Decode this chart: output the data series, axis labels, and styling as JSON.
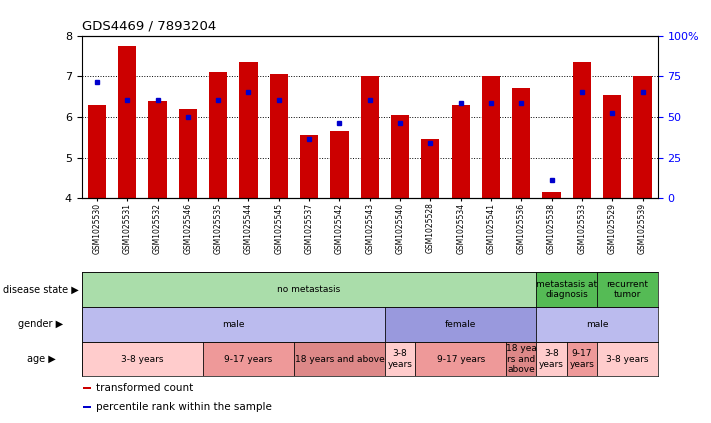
{
  "title": "GDS4469 / 7893204",
  "samples": [
    "GSM1025530",
    "GSM1025531",
    "GSM1025532",
    "GSM1025546",
    "GSM1025535",
    "GSM1025544",
    "GSM1025545",
    "GSM1025537",
    "GSM1025542",
    "GSM1025543",
    "GSM1025540",
    "GSM1025528",
    "GSM1025534",
    "GSM1025541",
    "GSM1025536",
    "GSM1025538",
    "GSM1025533",
    "GSM1025529",
    "GSM1025539"
  ],
  "transformed_counts": [
    6.3,
    7.75,
    6.4,
    6.2,
    7.1,
    7.35,
    7.05,
    5.55,
    5.65,
    7.0,
    6.05,
    5.45,
    6.3,
    7.0,
    6.7,
    4.15,
    7.35,
    6.55,
    7.0
  ],
  "percentile_ranks": [
    6.85,
    6.42,
    6.42,
    6.0,
    6.42,
    6.62,
    6.42,
    5.45,
    5.85,
    6.42,
    5.85,
    5.35,
    6.35,
    6.35,
    6.35,
    4.45,
    6.62,
    6.1,
    6.62
  ],
  "ylim_left": [
    4.0,
    8.0
  ],
  "yticks_left": [
    4,
    5,
    6,
    7,
    8
  ],
  "right_ytick_vals": [
    4.0,
    5.0,
    6.0,
    7.0,
    8.0
  ],
  "right_ytick_labels": [
    "0",
    "25",
    "50",
    "75",
    "100%"
  ],
  "bar_color": "#CC0000",
  "dot_color": "#0000CC",
  "disease_state_groups": [
    {
      "label": "no metastasis",
      "start": 0,
      "end": 15,
      "color": "#AADDAA"
    },
    {
      "label": "metastasis at\ndiagnosis",
      "start": 15,
      "end": 17,
      "color": "#55BB55"
    },
    {
      "label": "recurrent\ntumor",
      "start": 17,
      "end": 19,
      "color": "#55BB55"
    }
  ],
  "gender_groups": [
    {
      "label": "male",
      "start": 0,
      "end": 10,
      "color": "#BBBBEE"
    },
    {
      "label": "female",
      "start": 10,
      "end": 15,
      "color": "#9999DD"
    },
    {
      "label": "male",
      "start": 15,
      "end": 19,
      "color": "#BBBBEE"
    }
  ],
  "age_groups": [
    {
      "label": "3-8 years",
      "start": 0,
      "end": 4,
      "color": "#FFCCCC"
    },
    {
      "label": "9-17 years",
      "start": 4,
      "end": 7,
      "color": "#EE9999"
    },
    {
      "label": "18 years and above",
      "start": 7,
      "end": 10,
      "color": "#DD8888"
    },
    {
      "label": "3-8\nyears",
      "start": 10,
      "end": 11,
      "color": "#FFCCCC"
    },
    {
      "label": "9-17 years",
      "start": 11,
      "end": 14,
      "color": "#EE9999"
    },
    {
      "label": "18 yea\nrs and\nabove",
      "start": 14,
      "end": 15,
      "color": "#DD8888"
    },
    {
      "label": "3-8\nyears",
      "start": 15,
      "end": 16,
      "color": "#FFCCCC"
    },
    {
      "label": "9-17\nyears",
      "start": 16,
      "end": 17,
      "color": "#EE9999"
    },
    {
      "label": "3-8 years",
      "start": 17,
      "end": 19,
      "color": "#FFCCCC"
    }
  ],
  "row_labels": [
    "disease state",
    "gender",
    "age"
  ],
  "legend_items": [
    {
      "color": "#CC0000",
      "label": "transformed count"
    },
    {
      "color": "#0000CC",
      "label": "percentile rank within the sample"
    }
  ]
}
